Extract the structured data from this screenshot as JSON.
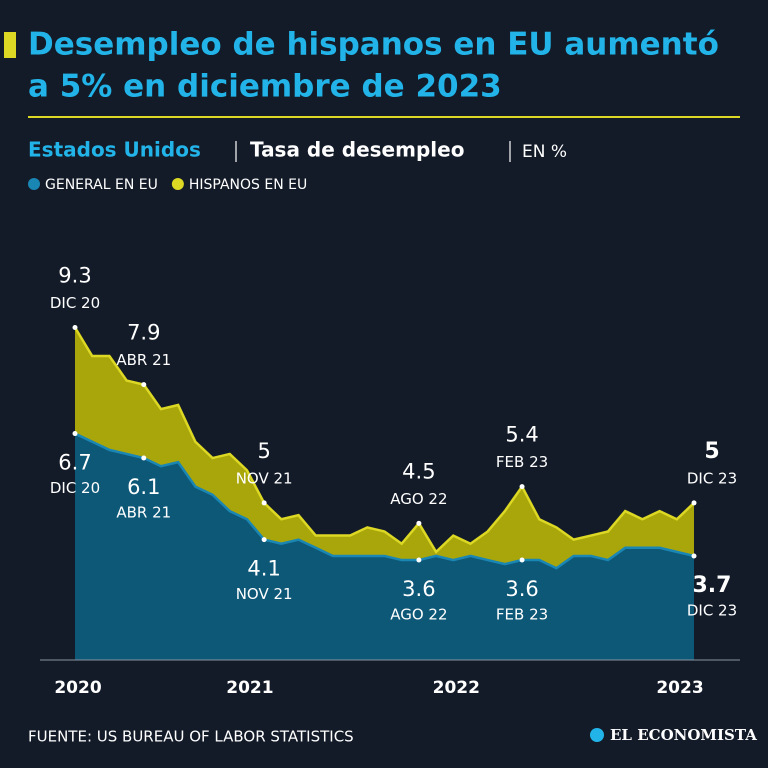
{
  "chart_data": {
    "type": "area",
    "title": [
      "Desempleo de hispanos en EU aumentó",
      "a 5% en diciembre de 2023"
    ],
    "subtitle": {
      "country": "Estados Unidos",
      "measure": "Tasa de desempleo",
      "unit": "EN %"
    },
    "source": "FUENTE: US BUREAU OF LABOR STATISTICS",
    "brand": "EL ECONOMISTA",
    "categories": [
      "2020",
      null,
      null,
      null,
      null,
      null,
      null,
      null,
      null,
      null,
      "2021",
      null,
      null,
      null,
      null,
      null,
      null,
      null,
      null,
      null,
      null,
      null,
      "2022",
      null,
      null,
      null,
      null,
      null,
      null,
      null,
      null,
      null,
      null,
      null,
      null,
      null,
      "2023"
    ],
    "ylim": [
      1.15,
      9.5
    ],
    "series": [
      {
        "name": "GENERAL EN EU",
        "color": "#1a86b4",
        "fill": "#0d5777",
        "values": [
          6.7,
          6.5,
          6.3,
          6.2,
          6.1,
          5.9,
          6.0,
          5.4,
          5.2,
          4.8,
          4.6,
          4.1,
          4.0,
          4.1,
          3.9,
          3.7,
          3.7,
          3.7,
          3.7,
          3.6,
          3.6,
          3.7,
          3.6,
          3.7,
          3.6,
          3.5,
          3.6,
          3.6,
          3.4,
          3.7,
          3.7,
          3.6,
          3.9,
          3.9,
          3.9,
          3.8,
          3.7
        ],
        "point_labels": [
          "DIC 20",
          null,
          null,
          null,
          "ABR 21",
          null,
          null,
          null,
          null,
          null,
          null,
          "NOV 21",
          null,
          null,
          null,
          null,
          null,
          null,
          null,
          null,
          "AGO 22",
          null,
          null,
          null,
          null,
          null,
          "FEB 23",
          null,
          null,
          null,
          null,
          null,
          null,
          null,
          null,
          null,
          "DIC 23"
        ]
      },
      {
        "name": "HISPANOS EN EU",
        "color": "#dcd823",
        "fill": "#a9a60c",
        "values": [
          9.3,
          8.6,
          8.6,
          8.0,
          7.9,
          7.3,
          7.4,
          6.5,
          6.1,
          6.2,
          5.8,
          5.0,
          4.6,
          4.7,
          4.2,
          4.2,
          4.2,
          4.4,
          4.3,
          4.0,
          4.5,
          3.8,
          4.2,
          4.0,
          4.3,
          4.8,
          5.4,
          4.6,
          4.4,
          4.1,
          4.2,
          4.3,
          4.8,
          4.6,
          4.8,
          4.6,
          5.0
        ],
        "point_labels": [
          "DIC 20",
          null,
          null,
          null,
          "ABR 21",
          null,
          null,
          null,
          null,
          null,
          null,
          "NOV 21",
          null,
          null,
          null,
          null,
          null,
          null,
          null,
          null,
          "AGO 22",
          null,
          null,
          null,
          null,
          null,
          "FEB 23",
          null,
          null,
          null,
          null,
          null,
          null,
          null,
          null,
          null,
          "DIC 23"
        ]
      }
    ]
  }
}
